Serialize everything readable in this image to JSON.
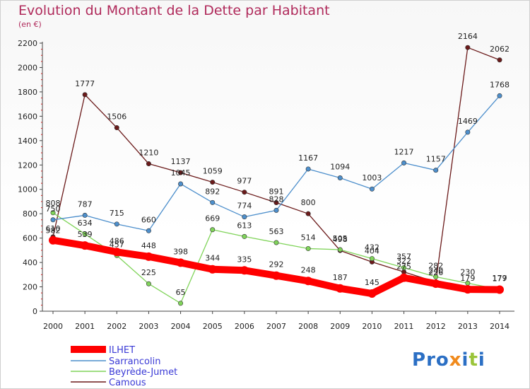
{
  "title": "Evolution du Montant de la Dette par Habitant",
  "unit": "(en €)",
  "logo": "Proxiti",
  "chart_data": {
    "type": "line",
    "title": "Evolution du Montant de la Dette par Habitant",
    "ylabel": "(en €)",
    "xlabel": "",
    "x": [
      "2000",
      "2001",
      "2002",
      "2003",
      "2004",
      "2005",
      "2006",
      "2007",
      "2008",
      "2009",
      "2010",
      "2011",
      "2012",
      "2013",
      "2014"
    ],
    "ylim": [
      0,
      2200
    ],
    "yticks": [
      0,
      200,
      400,
      600,
      800,
      1000,
      1200,
      1400,
      1600,
      1800,
      2000,
      2200
    ],
    "grid": false,
    "legend": "bottom-left",
    "series": [
      {
        "name": "ILHET",
        "color": "#ff0000",
        "values": [
          582,
          539,
          486,
          448,
          398,
          344,
          335,
          292,
          248,
          187,
          145,
          275,
          226,
          179,
          177
        ],
        "labels": [
          "582",
          "539",
          "486",
          "448",
          "398",
          "344",
          "335",
          "292",
          "248",
          "187",
          "145",
          "275",
          "226",
          "179",
          "177"
        ]
      },
      {
        "name": "Sarrancolin",
        "color": "#4d8fcc",
        "values": [
          750,
          787,
          715,
          660,
          1045,
          892,
          774,
          828,
          1167,
          1094,
          1003,
          1217,
          1157,
          1469,
          1768
        ],
        "labels": [
          "750",
          "787",
          "715",
          "660",
          "1045",
          "892",
          "774",
          "828",
          "1167",
          "1094",
          "1003",
          "1217",
          "1157",
          "1469",
          "1768"
        ]
      },
      {
        "name": "Beyrède-Jumet",
        "color": "#80d45a",
        "values": [
          808,
          634,
          457,
          225,
          65,
          669,
          613,
          563,
          514,
          505,
          432,
          357,
          282,
          230,
          179
        ],
        "labels": [
          "808",
          "634",
          "457",
          "225",
          "65",
          "669",
          "613",
          "563",
          "514",
          "505",
          "432",
          "357",
          "282",
          "230",
          "179"
        ]
      },
      {
        "name": "Camous",
        "color": "#6b1a1a",
        "values": [
          610,
          1777,
          1506,
          1210,
          1137,
          1059,
          977,
          891,
          800,
          498,
          404,
          322,
          240,
          2164,
          2062
        ],
        "labels": [
          "610",
          "1777",
          "1506",
          "1210",
          "1137",
          "1059",
          "977",
          "891",
          "800",
          "498",
          "404",
          "322",
          "240",
          "2164",
          "2062"
        ]
      }
    ]
  }
}
